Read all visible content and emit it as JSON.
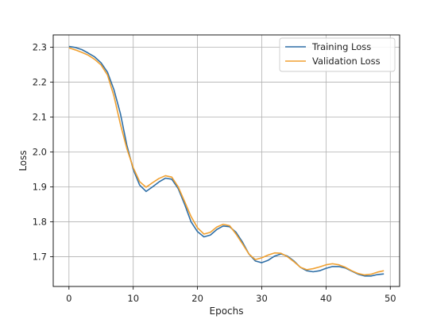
{
  "chart_data": {
    "type": "line",
    "title": "",
    "xlabel": "Epochs",
    "ylabel": "Loss",
    "xlim": [
      -2.45,
      51.45
    ],
    "ylim": [
      1.615,
      2.335
    ],
    "xticks": [
      0,
      10,
      20,
      30,
      40,
      50
    ],
    "yticks": [
      1.7,
      1.8,
      1.9,
      2.0,
      2.1,
      2.2,
      2.3
    ],
    "xtick_labels": [
      "0",
      "10",
      "20",
      "30",
      "40",
      "50"
    ],
    "ytick_labels": [
      "1.7",
      "1.8",
      "1.9",
      "2.0",
      "2.1",
      "2.2",
      "2.3"
    ],
    "grid": true,
    "legend_position": "top-right",
    "x": [
      0,
      1,
      2,
      3,
      4,
      5,
      6,
      7,
      8,
      9,
      10,
      11,
      12,
      13,
      14,
      15,
      16,
      17,
      18,
      19,
      20,
      21,
      22,
      23,
      24,
      25,
      26,
      27,
      28,
      29,
      30,
      31,
      32,
      33,
      34,
      35,
      36,
      37,
      38,
      39,
      40,
      41,
      42,
      43,
      44,
      45,
      46,
      47,
      48,
      49
    ],
    "series": [
      {
        "name": "Training Loss",
        "color": "#2f6fa7",
        "values": [
          2.302,
          2.299,
          2.293,
          2.283,
          2.272,
          2.255,
          2.228,
          2.178,
          2.11,
          2.02,
          1.95,
          1.905,
          1.887,
          1.9,
          1.914,
          1.925,
          1.922,
          1.895,
          1.85,
          1.8,
          1.772,
          1.757,
          1.762,
          1.778,
          1.788,
          1.786,
          1.77,
          1.742,
          1.708,
          1.688,
          1.683,
          1.69,
          1.702,
          1.708,
          1.702,
          1.688,
          1.67,
          1.66,
          1.657,
          1.66,
          1.667,
          1.672,
          1.672,
          1.668,
          1.659,
          1.65,
          1.645,
          1.645,
          1.649,
          1.651
        ]
      },
      {
        "name": "Validation Loss",
        "color": "#f0a030",
        "values": [
          2.298,
          2.292,
          2.285,
          2.277,
          2.265,
          2.249,
          2.22,
          2.16,
          2.08,
          2.01,
          1.955,
          1.915,
          1.899,
          1.912,
          1.924,
          1.932,
          1.928,
          1.9,
          1.858,
          1.815,
          1.783,
          1.765,
          1.77,
          1.785,
          1.793,
          1.789,
          1.765,
          1.737,
          1.708,
          1.692,
          1.697,
          1.705,
          1.711,
          1.71,
          1.7,
          1.686,
          1.67,
          1.663,
          1.666,
          1.671,
          1.677,
          1.68,
          1.677,
          1.67,
          1.66,
          1.652,
          1.648,
          1.65,
          1.656,
          1.66
        ]
      }
    ]
  }
}
